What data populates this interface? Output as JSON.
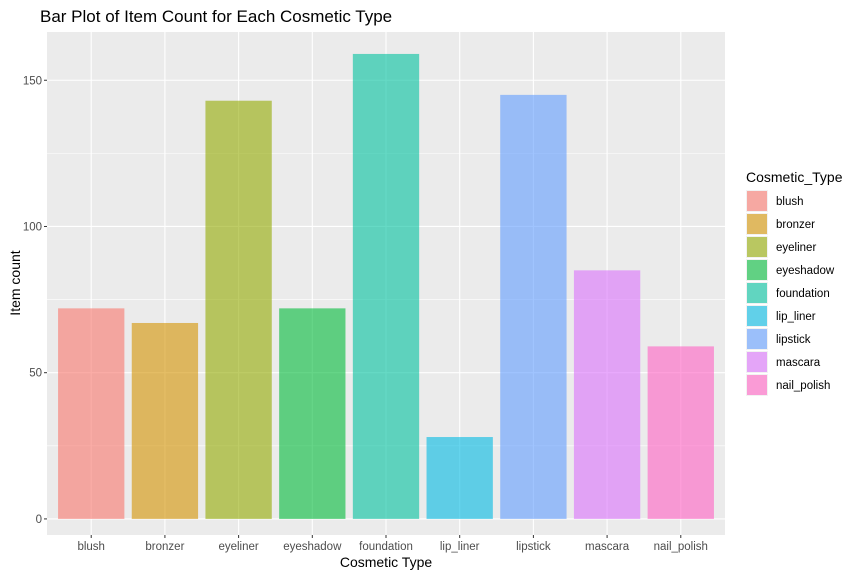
{
  "chart_data": {
    "type": "bar",
    "title": "Bar Plot of Item Count for Each Cosmetic Type",
    "xlabel": "Cosmetic Type",
    "ylabel": "Item count",
    "categories": [
      "blush",
      "bronzer",
      "eyeliner",
      "eyeshadow",
      "foundation",
      "lip_liner",
      "lipstick",
      "mascara",
      "nail_polish"
    ],
    "values": [
      72,
      67,
      143,
      72,
      159,
      28,
      145,
      85,
      59
    ],
    "colors": [
      "#F8766D",
      "#D39200",
      "#93AA00",
      "#00BA38",
      "#00C19F",
      "#00B9E3",
      "#619CFF",
      "#DB72FB",
      "#FF61C3"
    ],
    "bar_opacity": 0.6,
    "ylim": [
      -5.5,
      166.5
    ],
    "yticks": [
      0,
      50,
      100,
      150
    ],
    "panel_background": "#EBEBEB",
    "grid": true,
    "legend": {
      "title": "Cosmetic_Type",
      "position": "right",
      "entries": [
        "blush",
        "bronzer",
        "eyeliner",
        "eyeshadow",
        "foundation",
        "lip_liner",
        "lipstick",
        "mascara",
        "nail_polish"
      ]
    }
  }
}
